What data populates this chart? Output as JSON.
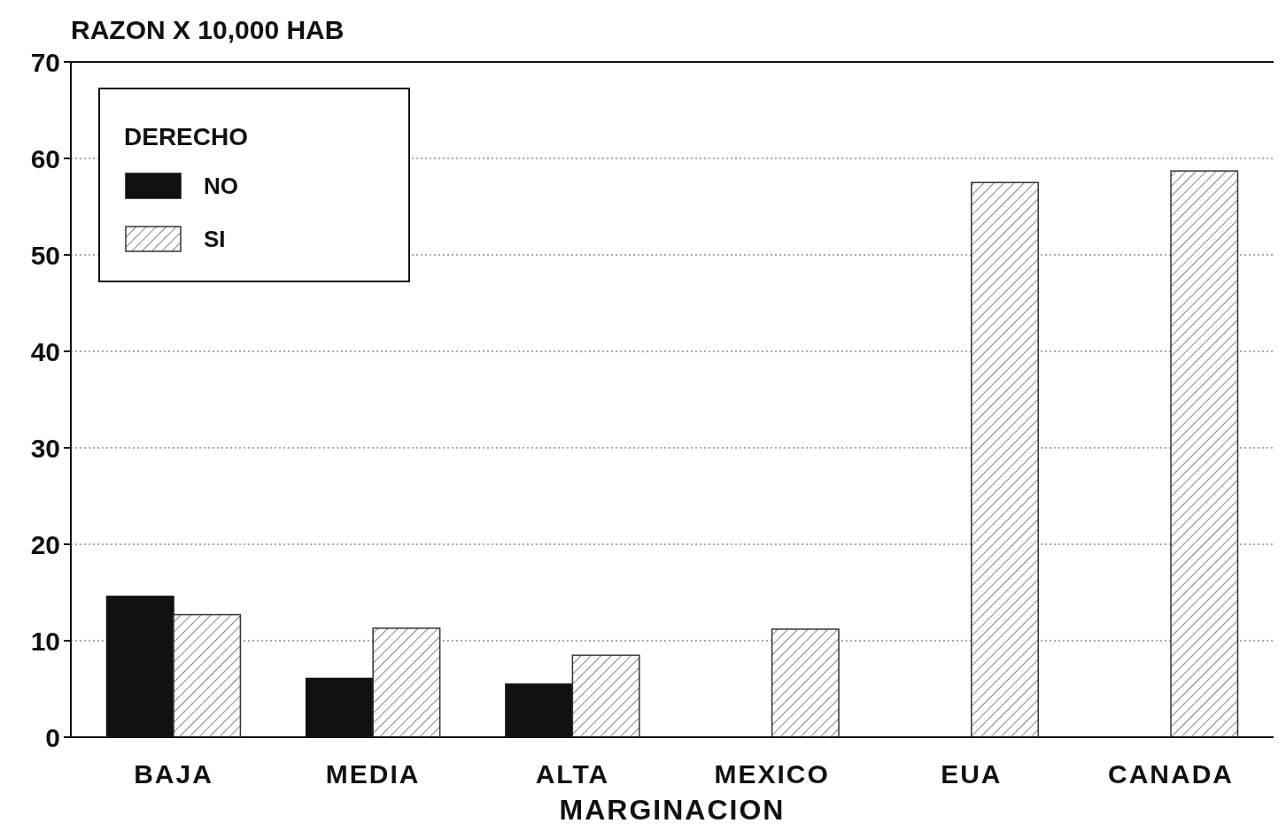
{
  "chart_data": {
    "type": "bar",
    "ylabel": "RAZON X 10,000 HAB",
    "xlabel": "MARGINACION",
    "legend_title": "DERECHO",
    "categories": [
      "BAJA",
      "MEDIA",
      "ALTA",
      "MEXICO",
      "EUA",
      "CANADA"
    ],
    "series": [
      {
        "name": "NO",
        "color": "#111111",
        "values": [
          14.6,
          6.1,
          5.5,
          null,
          null,
          null
        ]
      },
      {
        "name": "SI",
        "color": "#333333",
        "values": [
          12.7,
          11.3,
          8.5,
          11.2,
          57.5,
          58.7
        ]
      }
    ],
    "ylim": [
      0,
      70
    ],
    "yticks": [
      0,
      10,
      20,
      30,
      40,
      50,
      60,
      70
    ],
    "grid": "y",
    "legend": "top left"
  }
}
